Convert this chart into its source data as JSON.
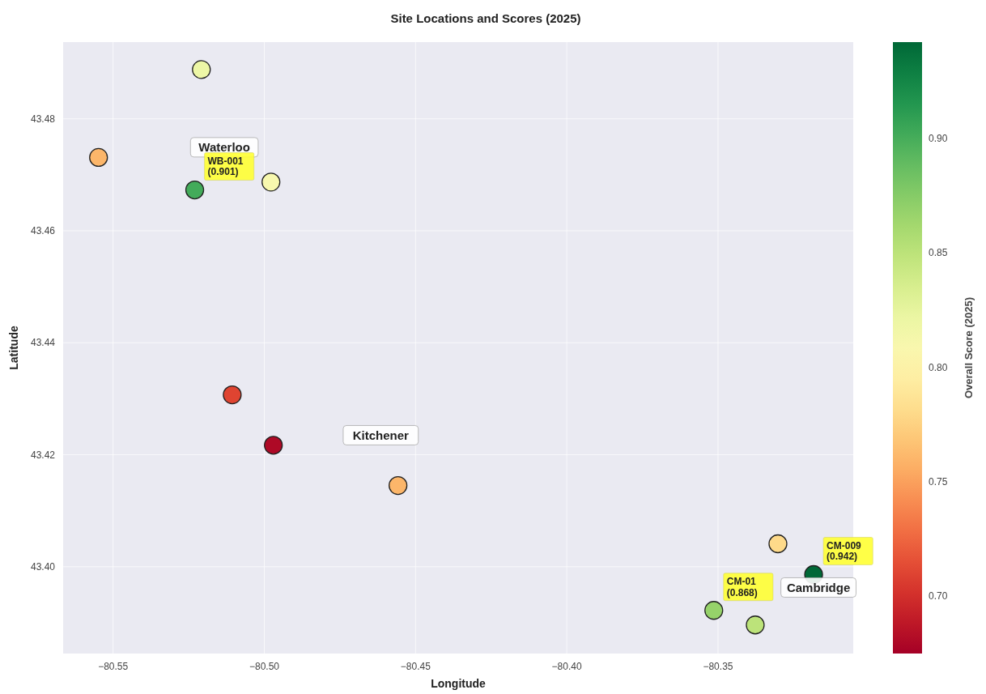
{
  "chart_data": {
    "type": "scatter",
    "title": "Site Locations and Scores (2025)",
    "xlabel": "Longitude",
    "ylabel": "Latitude",
    "clabel": "Overall Score (2025)",
    "x": [
      -80.5208,
      -80.5548,
      -80.523,
      -80.4978,
      -80.5106,
      -80.497,
      -80.4558,
      -80.3302,
      -80.3184,
      -80.3514,
      -80.3377
    ],
    "values": [
      43.4888,
      43.4731,
      43.4673,
      43.4687,
      43.4307,
      43.4217,
      43.4145,
      43.4041,
      43.3986,
      43.3922,
      43.3896
    ],
    "cvalues": [
      0.82,
      0.76,
      0.901,
      0.81,
      0.71,
      0.68,
      0.76,
      0.78,
      0.942,
      0.868,
      0.85
    ],
    "xlim": [
      -80.5665,
      -80.3053
    ],
    "ylim": [
      43.3845,
      43.4937
    ],
    "xticks": [
      -80.55,
      {
        "value": -80.5,
        "label": "−80.50"
      },
      -80.45,
      {
        "value": -80.4,
        "label": "−80.40"
      },
      -80.35
    ],
    "yticks": [
      {
        "value": 43.4,
        "label": "43.40"
      },
      43.42,
      43.44,
      43.46,
      43.48
    ],
    "clim": [
      0.675,
      0.942
    ],
    "cticks": [
      {
        "value": 0.7,
        "label": "0.70"
      },
      0.75,
      {
        "value": 0.8,
        "label": "0.80"
      },
      0.85,
      {
        "value": 0.9,
        "label": "0.90"
      }
    ],
    "grid": true,
    "marker": "circle",
    "annotations": [
      "Waterloo",
      "Kitchener",
      "Cambridge",
      {
        "text": "WB-001\n(0.901)",
        "x": -80.523,
        "y": 43.4673
      },
      {
        "text": "CM-009\n(0.942)",
        "x": -80.3184,
        "y": 43.3986
      },
      {
        "text": "CM-01\n(0.868)",
        "x": -80.3514,
        "y": 43.3922
      }
    ]
  }
}
